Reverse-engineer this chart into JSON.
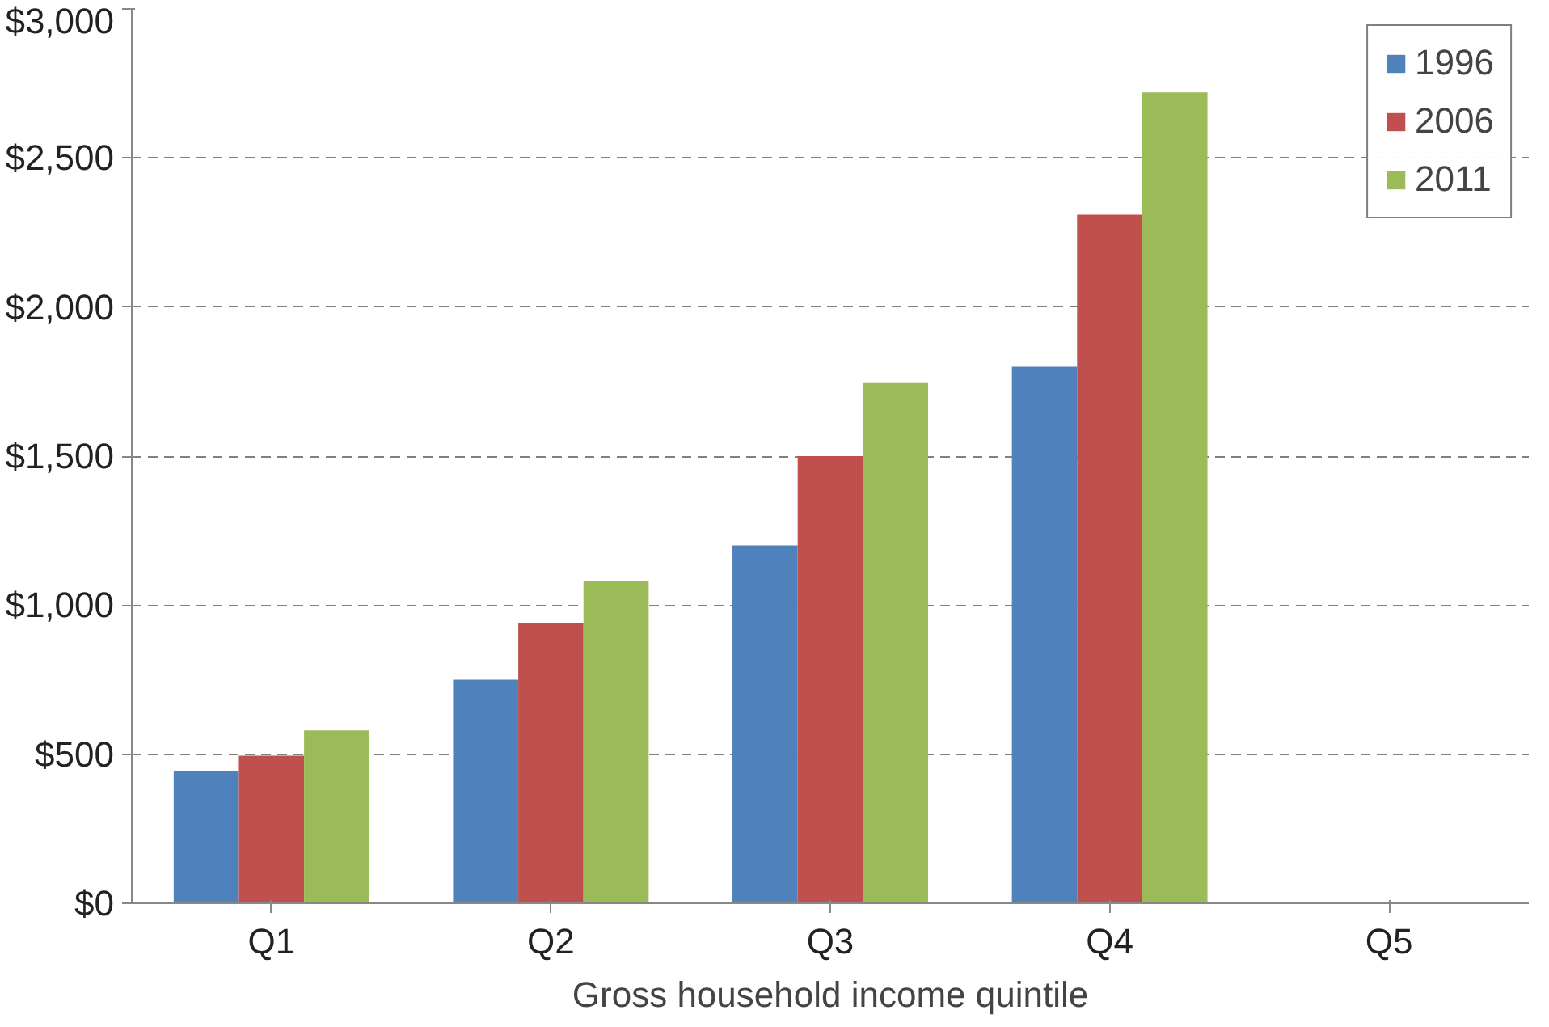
{
  "chart_data": {
    "type": "bar",
    "xlabel": "Gross household income quintile",
    "categories": [
      "Q1",
      "Q2",
      "Q3",
      "Q4",
      "Q5"
    ],
    "series": [
      {
        "name": "1996",
        "color": "#4f81bd",
        "values": [
          445,
          750,
          1200,
          1800,
          null
        ]
      },
      {
        "name": "2006",
        "color": "#c0504d",
        "values": [
          495,
          940,
          1500,
          2310,
          null
        ]
      },
      {
        "name": "2011",
        "color": "#9bbb59",
        "values": [
          580,
          1080,
          1745,
          2720,
          null
        ]
      }
    ],
    "ylim": [
      0,
      3000
    ],
    "yticks": [
      {
        "value": 0,
        "label": "$0"
      },
      {
        "value": 500,
        "label": "$500"
      },
      {
        "value": 1000,
        "label": "$1,000"
      },
      {
        "value": 1500,
        "label": "$1,500"
      },
      {
        "value": 2000,
        "label": "$2,000"
      },
      {
        "value": 2500,
        "label": "$2,500"
      },
      {
        "value": 3000,
        "label": "$3,000"
      }
    ],
    "grid": "y",
    "legend": "top right",
    "line_style": "dashed"
  }
}
